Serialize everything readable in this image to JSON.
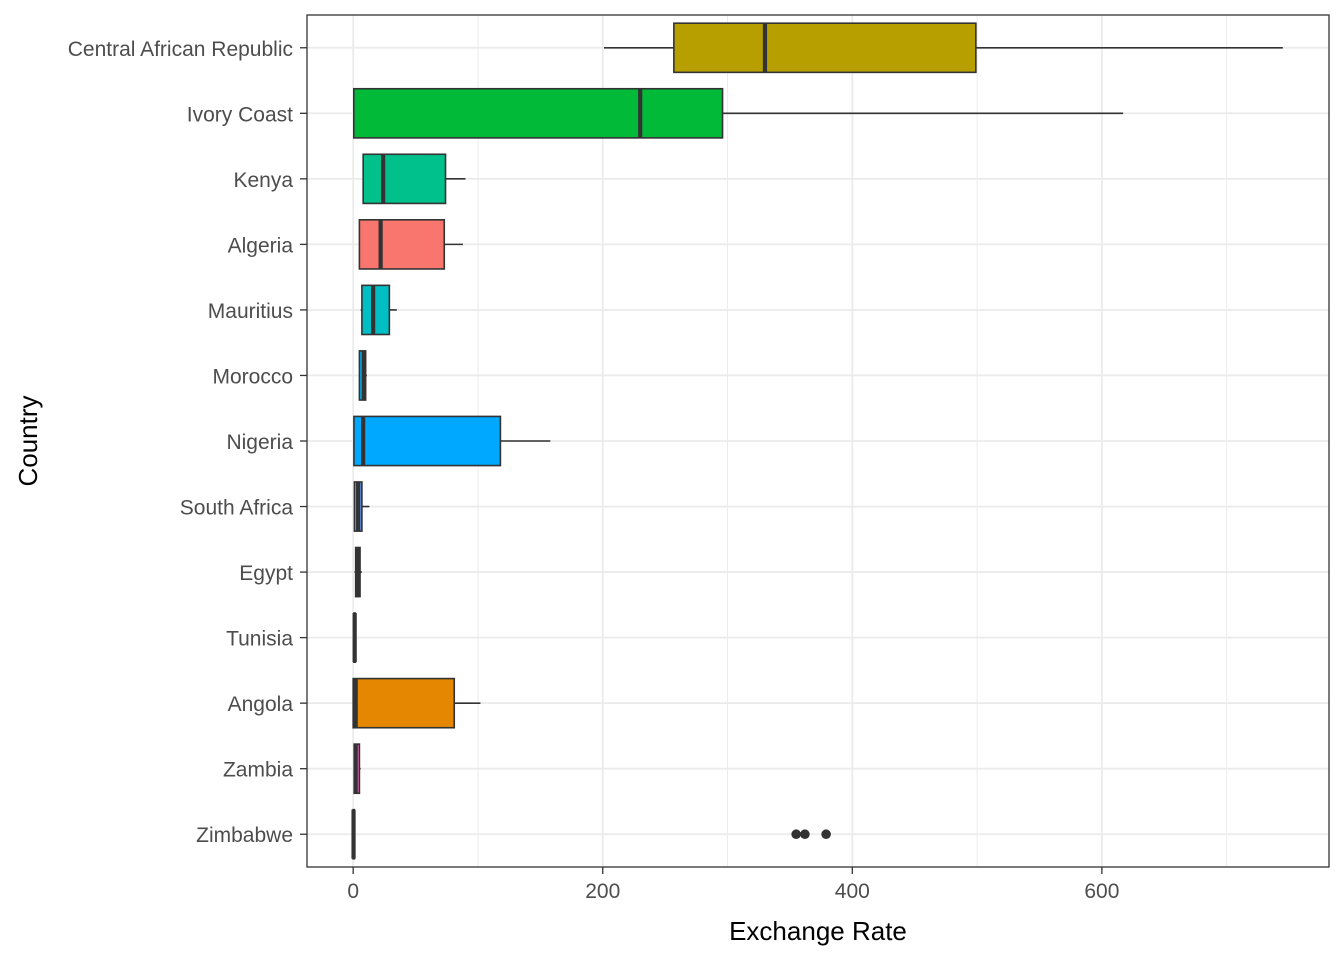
{
  "chart_data": {
    "type": "boxplot",
    "orientation": "horizontal",
    "title": "",
    "xlabel": "Exchange Rate",
    "ylabel": "Country",
    "xlim": [
      -37,
      782
    ],
    "x_ticks": [
      0,
      200,
      400,
      600
    ],
    "x_tick_labels": [
      "0",
      "200",
      "400",
      "600"
    ],
    "grid": true,
    "legend": "none",
    "categories": [
      {
        "name": "Central African Republic",
        "fill": "#B79F00",
        "min": 201,
        "q1": 257,
        "median": 330,
        "q3": 499,
        "max": 745,
        "outliers": []
      },
      {
        "name": "Ivory Coast",
        "fill": "#00BA38",
        "min": 0.5,
        "q1": 0.5,
        "median": 230,
        "q3": 296,
        "max": 617,
        "outliers": []
      },
      {
        "name": "Kenya",
        "fill": "#00C08B",
        "min": 8,
        "q1": 8,
        "median": 24,
        "q3": 74,
        "max": 90,
        "outliers": []
      },
      {
        "name": "Algeria",
        "fill": "#F8766D",
        "min": 5,
        "q1": 5,
        "median": 22,
        "q3": 73,
        "max": 88,
        "outliers": []
      },
      {
        "name": "Mauritius",
        "fill": "#00BFC4",
        "min": 6,
        "q1": 7,
        "median": 16,
        "q3": 29,
        "max": 35,
        "outliers": []
      },
      {
        "name": "Morocco",
        "fill": "#00B4F0",
        "min": 5,
        "q1": 5,
        "median": 8.5,
        "q3": 10,
        "max": 11,
        "outliers": []
      },
      {
        "name": "Nigeria",
        "fill": "#00A9FF",
        "min": 0.6,
        "q1": 0.6,
        "median": 8,
        "q3": 118,
        "max": 158,
        "outliers": []
      },
      {
        "name": "South Africa",
        "fill": "#619CFF",
        "min": 1,
        "q1": 1,
        "median": 4,
        "q3": 7,
        "max": 13,
        "outliers": []
      },
      {
        "name": "Egypt",
        "fill": "#9590FF",
        "min": 1,
        "q1": 2,
        "median": 4,
        "q3": 5.5,
        "max": 7,
        "outliers": []
      },
      {
        "name": "Tunisia",
        "fill": "#C77CFF",
        "min": 0.5,
        "q1": 0.6,
        "median": 1.2,
        "q3": 1.7,
        "max": 2.5,
        "outliers": []
      },
      {
        "name": "Angola",
        "fill": "#E58700",
        "min": 0.01,
        "q1": 0.01,
        "median": 2,
        "q3": 81,
        "max": 102,
        "outliers": []
      },
      {
        "name": "Zambia",
        "fill": "#FF61C3",
        "min": 0.5,
        "q1": 0.8,
        "median": 2,
        "q3": 5,
        "max": 6,
        "outliers": []
      },
      {
        "name": "Zimbabwe",
        "fill": "#FF67A4",
        "min": 0,
        "q1": 0,
        "median": 0.3,
        "q3": 0.8,
        "max": 1.5,
        "outliers": [
          355,
          362,
          379
        ]
      }
    ]
  }
}
